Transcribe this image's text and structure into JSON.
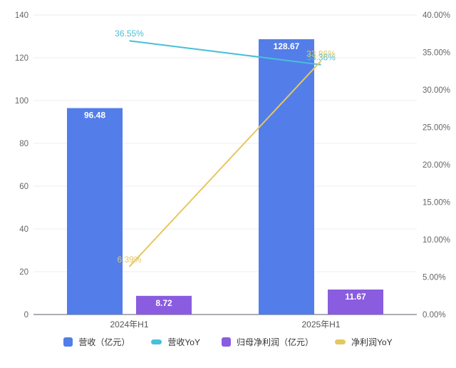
{
  "chart_data": {
    "type": "bar",
    "subtype": "bar-line-combo",
    "title": "",
    "categories": [
      "2024年H1",
      "2025年H1"
    ],
    "series": [
      {
        "name": "营收（亿元）",
        "type": "bar",
        "axis": "left",
        "color": "#537DE9",
        "values": [
          96.48,
          128.67
        ],
        "labels": [
          "96.48",
          "128.67"
        ]
      },
      {
        "name": "营收YoY",
        "type": "line",
        "axis": "right",
        "color": "#48BFD8",
        "values": [
          36.55,
          33.36
        ],
        "labels": [
          "36.55%",
          "33.36%"
        ]
      },
      {
        "name": "归母净利润（亿元）",
        "type": "bar",
        "axis": "left",
        "color": "#8A5CE0",
        "values": [
          8.72,
          11.67
        ],
        "labels": [
          "8.72",
          "11.67"
        ]
      },
      {
        "name": "净利润YoY",
        "type": "line",
        "axis": "right",
        "color": "#E6C75F",
        "values": [
          6.39,
          33.86
        ],
        "labels": [
          "6.39%",
          "33.86%"
        ]
      }
    ],
    "left_axis": {
      "min": 0,
      "max": 140,
      "step": 20,
      "tick_labels": [
        "0",
        "20",
        "40",
        "60",
        "80",
        "100",
        "120",
        "140"
      ]
    },
    "right_axis": {
      "min": 0,
      "max": 40,
      "step": 5,
      "tick_labels": [
        "0.00%",
        "5.00%",
        "10.00%",
        "15.00%",
        "20.00%",
        "25.00%",
        "30.00%",
        "35.00%",
        "40.00%"
      ]
    },
    "grid": true,
    "legend_position": "bottom",
    "colors": {
      "gridline": "#ededed",
      "axis_line": "#8e9399",
      "axis_text": "#666666",
      "x_label_text": "#555555",
      "bar_value_text": "#ffffff",
      "legend_text": "#333333",
      "background": "#ffffff"
    }
  }
}
